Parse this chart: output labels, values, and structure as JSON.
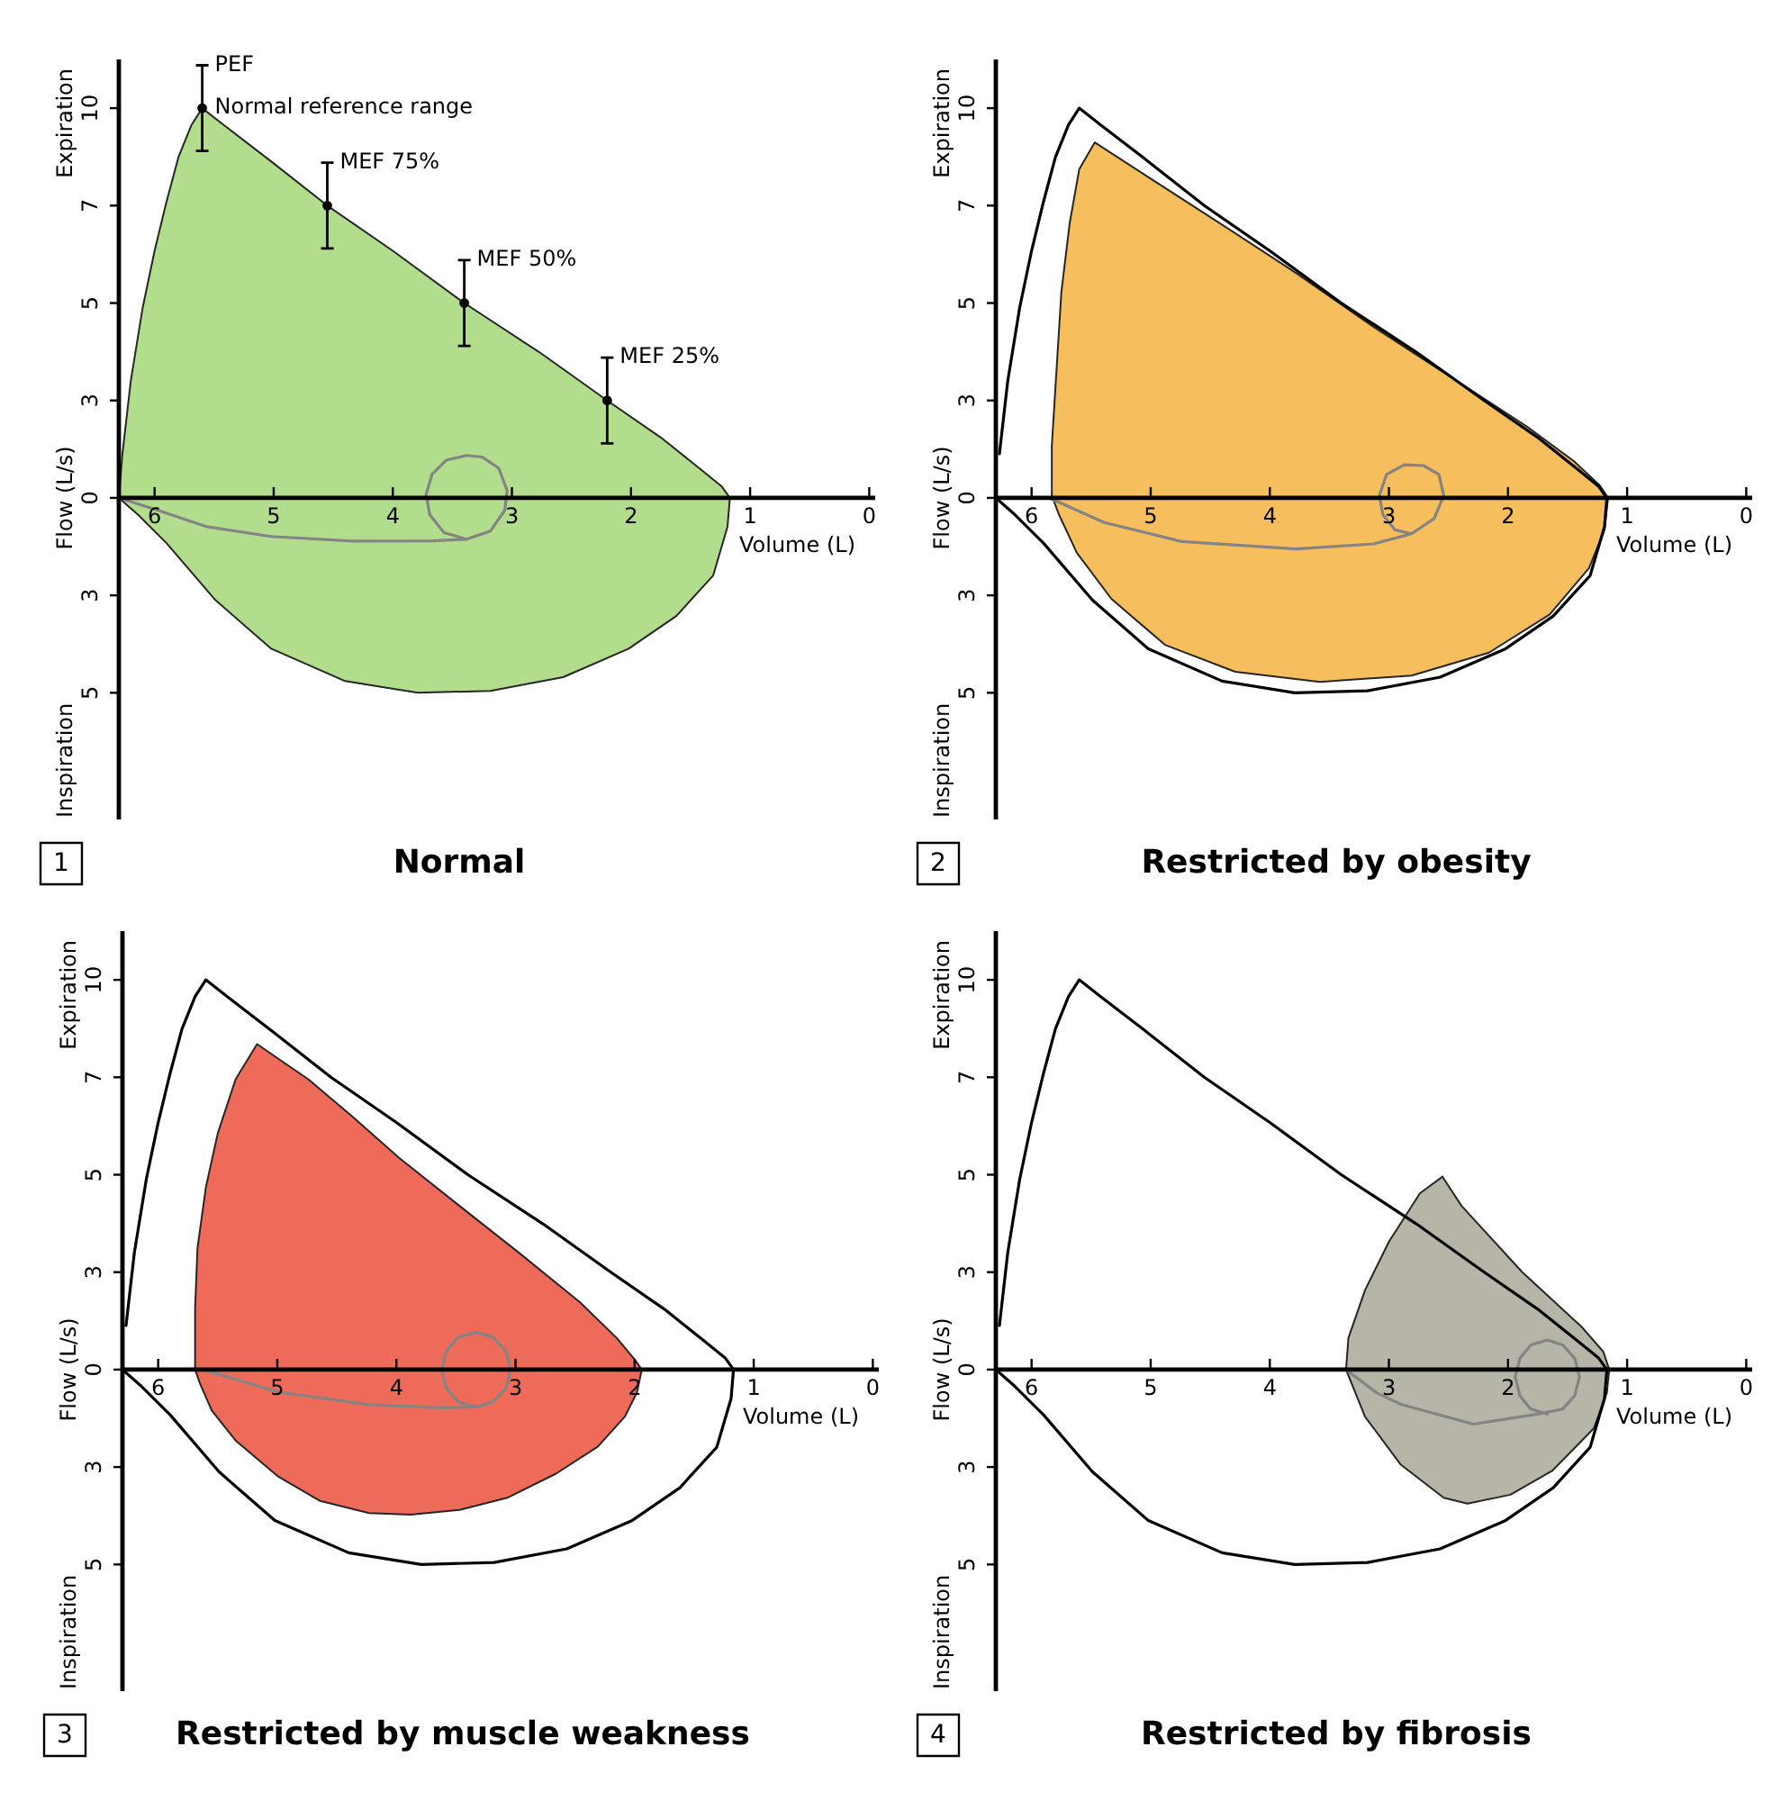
{
  "chart_data": [
    {
      "type": "line",
      "title": "Normal",
      "xlabel": "Volume (L)",
      "ylabel": "Flow (L/s)",
      "annotations": [
        "1",
        "Expiration",
        "Inspiration",
        {
          "text": "PEF",
          "x": 5.6,
          "y": 11.1
        },
        {
          "text": "Normal reference range",
          "x": 5.6,
          "y": 10
        },
        {
          "text": "MEF 75%",
          "x": 4.55,
          "y": 8.6
        },
        {
          "text": "MEF 50%",
          "x": 3.4,
          "y": 6.1
        },
        {
          "text": "MEF 25%",
          "x": 2.2,
          "y": 3.6
        }
      ],
      "xlim": [
        6.3,
        -0.05
      ],
      "xticks": [
        6,
        5,
        4,
        3,
        2,
        1,
        0
      ],
      "ylim": [
        -8.25,
        11.25
      ],
      "yticks": [
        {
          "value": -5,
          "label": "5"
        },
        {
          "value": -2.5,
          "label": "3"
        },
        0,
        {
          "value": 2.5,
          "label": "3"
        },
        5,
        {
          "value": 7.5,
          "label": "7"
        },
        10
      ],
      "marker": "none",
      "series": [
        {
          "type": "area",
          "color": "#b1dd8c",
          "x": [
            6.3,
            6.27,
            6.2,
            6.1,
            6.0,
            5.9,
            5.8,
            5.69,
            5.6,
            5.42,
            5.02,
            4.55,
            4.0,
            3.4,
            2.77,
            2.2,
            1.75,
            1.41,
            1.24,
            1.17,
            1.19,
            1.31,
            1.62,
            2.02,
            2.57,
            3.18,
            3.79,
            4.4,
            5.02,
            5.49,
            5.9,
            6.14,
            6.3
          ],
          "values": [
            0,
            1.13,
            3.0,
            4.88,
            6.34,
            7.6,
            8.74,
            9.57,
            10,
            9.57,
            8.63,
            7.5,
            6.34,
            5.0,
            3.74,
            2.5,
            1.55,
            0.72,
            0.3,
            0,
            -0.74,
            -1.99,
            -3.03,
            -3.87,
            -4.6,
            -4.95,
            -5.0,
            -4.7,
            -3.87,
            -2.62,
            -1.16,
            -0.43,
            0
          ]
        },
        {
          "type": "line",
          "color": "#848484",
          "x": [
            6.3,
            5.97,
            5.56,
            5.02,
            4.34,
            3.66,
            3.38,
            3.18,
            3.06,
            3.04,
            3.11,
            3.25,
            3.38,
            3.55,
            3.67,
            3.72,
            3.69,
            3.57,
            3.38
          ],
          "values": [
            0,
            -0.32,
            -0.74,
            -0.99,
            -1.11,
            -1.1,
            -1.06,
            -0.85,
            -0.32,
            0.19,
            0.76,
            1.05,
            1.09,
            0.97,
            0.61,
            0.09,
            -0.43,
            -0.89,
            -1.06
          ]
        },
        {
          "type": "scatter",
          "color": "#000000",
          "marker": "circle",
          "x": [
            5.6,
            4.55,
            3.4,
            2.2
          ],
          "values": [
            10,
            7.5,
            5,
            2.5
          ],
          "errors": [
            1.1,
            1.1,
            1.1,
            1.1
          ]
        }
      ]
    },
    {
      "type": "line",
      "title": "Restricted by obesity",
      "xlabel": "Volume (L)",
      "ylabel": "Flow (L/s)",
      "annotations": [
        "2",
        "Expiration",
        "Inspiration"
      ],
      "xlim": [
        6.3,
        -0.05
      ],
      "xticks": [
        6,
        5,
        4,
        3,
        2,
        1,
        0
      ],
      "ylim": [
        -8.25,
        11.25
      ],
      "yticks": [
        {
          "value": -5,
          "label": "5"
        },
        {
          "value": -2.5,
          "label": "3"
        },
        0,
        {
          "value": 2.5,
          "label": "3"
        },
        5,
        {
          "value": 7.5,
          "label": "7"
        },
        10
      ],
      "marker": "none",
      "series": [
        {
          "type": "area",
          "color": "#f6be5d",
          "x": [
            5.83,
            5.83,
            5.79,
            5.75,
            5.68,
            5.6,
            5.47,
            5.07,
            4.42,
            3.78,
            3.13,
            2.49,
            1.84,
            1.45,
            1.23,
            1.16,
            1.19,
            1.32,
            1.65,
            2.16,
            2.81,
            3.58,
            4.29,
            4.88,
            5.33,
            5.62,
            5.77,
            5.83
          ],
          "values": [
            0.06,
            1.34,
            3.31,
            5.28,
            7.05,
            8.43,
            9.12,
            8.33,
            7.05,
            5.77,
            4.39,
            3.12,
            1.83,
            0.95,
            0.32,
            0,
            -0.82,
            -1.8,
            -2.99,
            -3.97,
            -4.56,
            -4.72,
            -4.46,
            -3.77,
            -2.59,
            -1.41,
            -0.43,
            0.06
          ]
        },
        {
          "type": "line",
          "color": "#000000",
          "x": [
            6.27,
            6.2,
            6.1,
            6.0,
            5.9,
            5.8,
            5.69,
            5.6,
            5.42,
            5.02,
            4.55,
            4.0,
            3.4,
            2.77,
            2.2,
            1.75,
            1.41,
            1.24,
            1.17,
            1.19,
            1.31,
            1.62,
            2.02,
            2.57,
            3.18,
            3.79,
            4.4,
            5.02,
            5.49,
            5.9,
            6.14,
            6.3
          ],
          "values": [
            1.13,
            3.0,
            4.88,
            6.34,
            7.6,
            8.74,
            9.57,
            10,
            9.57,
            8.63,
            7.5,
            6.34,
            5.0,
            3.74,
            2.5,
            1.55,
            0.72,
            0.3,
            0,
            -0.74,
            -1.99,
            -3.03,
            -3.87,
            -4.6,
            -4.95,
            -5.0,
            -4.7,
            -3.87,
            -2.62,
            -1.16,
            -0.43,
            0
          ]
        },
        {
          "type": "line",
          "color": "#848484",
          "x": [
            5.85,
            5.39,
            4.74,
            3.78,
            3.13,
            2.81,
            2.62,
            2.54,
            2.58,
            2.71,
            2.87,
            3.02,
            3.08,
            3.05,
            2.95,
            2.81
          ],
          "values": [
            0,
            -0.63,
            -1.12,
            -1.31,
            -1.18,
            -0.92,
            -0.53,
            0.06,
            0.6,
            0.83,
            0.85,
            0.6,
            0.06,
            -0.43,
            -0.82,
            -0.92
          ]
        }
      ]
    },
    {
      "type": "line",
      "title": "Restricted by muscle weakness",
      "xlabel": "Volume (L)",
      "ylabel": "Flow (L/s)",
      "annotations": [
        "3",
        "Expiration",
        "Inspiration"
      ],
      "xlim": [
        6.3,
        -0.05
      ],
      "xticks": [
        6,
        5,
        4,
        3,
        2,
        1,
        0
      ],
      "ylim": [
        -8.25,
        11.25
      ],
      "yticks": [
        {
          "value": -5,
          "label": "5"
        },
        {
          "value": -2.5,
          "label": "3"
        },
        0,
        {
          "value": 2.5,
          "label": "3"
        },
        5,
        {
          "value": 7.5,
          "label": "7"
        },
        10
      ],
      "marker": "none",
      "series": [
        {
          "type": "area",
          "color": "#ee6a59",
          "x": [
            5.69,
            5.69,
            5.67,
            5.6,
            5.5,
            5.35,
            5.17,
            4.74,
            4.38,
            3.98,
            3.47,
            2.96,
            2.46,
            2.15,
            2.0,
            1.94,
            1.98,
            2.08,
            2.31,
            2.66,
            3.07,
            3.47,
            3.88,
            4.23,
            4.64,
            4.99,
            5.35,
            5.55,
            5.65,
            5.69
          ],
          "values": [
            0,
            1.58,
            3.12,
            4.67,
            6.06,
            7.45,
            8.35,
            7.45,
            6.52,
            5.44,
            4.2,
            2.97,
            1.73,
            0.81,
            0.26,
            0,
            -0.58,
            -1.2,
            -1.98,
            -2.67,
            -3.29,
            -3.6,
            -3.72,
            -3.68,
            -3.37,
            -2.75,
            -1.82,
            -1.05,
            -0.35,
            0
          ]
        },
        {
          "type": "line",
          "color": "#000000",
          "x": [
            6.27,
            6.2,
            6.1,
            6.0,
            5.9,
            5.8,
            5.69,
            5.6,
            5.42,
            5.02,
            4.55,
            4.0,
            3.4,
            2.77,
            2.2,
            1.75,
            1.41,
            1.24,
            1.17,
            1.19,
            1.31,
            1.62,
            2.02,
            2.57,
            3.18,
            3.79,
            4.4,
            5.02,
            5.49,
            5.9,
            6.14,
            6.3
          ],
          "values": [
            1.13,
            3.0,
            4.88,
            6.34,
            7.6,
            8.74,
            9.57,
            10,
            9.57,
            8.63,
            7.5,
            6.34,
            5.0,
            3.74,
            2.5,
            1.55,
            0.72,
            0.3,
            0,
            -0.74,
            -1.99,
            -3.03,
            -3.87,
            -4.6,
            -4.95,
            -5.0,
            -4.7,
            -3.87,
            -2.62,
            -1.16,
            -0.43,
            0
          ]
        },
        {
          "type": "line",
          "color": "#848484",
          "x": [
            5.62,
            4.99,
            4.23,
            3.6,
            3.33,
            3.19,
            3.08,
            3.04,
            3.08,
            3.19,
            3.33,
            3.48,
            3.58,
            3.62,
            3.58,
            3.48,
            3.33
          ],
          "values": [
            0,
            -0.58,
            -0.9,
            -0.98,
            -0.96,
            -0.83,
            -0.48,
            0,
            0.48,
            0.83,
            0.96,
            0.83,
            0.48,
            0,
            -0.48,
            -0.83,
            -0.96
          ]
        }
      ]
    },
    {
      "type": "line",
      "title": "Restricted by fibrosis",
      "xlabel": "Volume (L)",
      "ylabel": "Flow (L/s)",
      "annotations": [
        "4",
        "Expiration",
        "Inspiration"
      ],
      "xlim": [
        6.3,
        -0.05
      ],
      "xticks": [
        6,
        5,
        4,
        3,
        2,
        1,
        0
      ],
      "ylim": [
        -8.25,
        11.25
      ],
      "yticks": [
        {
          "value": -5,
          "label": "5"
        },
        {
          "value": -2.5,
          "label": "3"
        },
        0,
        {
          "value": 2.5,
          "label": "3"
        },
        5,
        {
          "value": 7.5,
          "label": "7"
        },
        10
      ],
      "marker": "none",
      "series": [
        {
          "type": "area",
          "color": "#b6b5a8",
          "x": [
            3.36,
            3.34,
            3.2,
            3.0,
            2.74,
            2.55,
            2.39,
            1.88,
            1.38,
            1.2,
            1.15,
            1.17,
            1.28,
            1.63,
            1.98,
            2.34,
            2.54,
            2.9,
            3.2,
            3.36
          ],
          "values": [
            0,
            0.81,
            2.04,
            3.28,
            4.52,
            4.95,
            4.2,
            2.5,
            1.09,
            0.46,
            0,
            -0.6,
            -1.51,
            -2.6,
            -3.21,
            -3.44,
            -3.29,
            -2.44,
            -1.21,
            0
          ]
        },
        {
          "type": "line",
          "color": "#000000",
          "x": [
            6.27,
            6.2,
            6.1,
            6.0,
            5.9,
            5.8,
            5.69,
            5.6,
            5.42,
            5.02,
            4.55,
            4.0,
            3.4,
            2.77,
            2.2,
            1.75,
            1.41,
            1.24,
            1.17,
            1.19,
            1.31,
            1.62,
            2.02,
            2.57,
            3.18,
            3.79,
            4.4,
            5.02,
            5.49,
            5.9,
            6.14,
            6.3
          ],
          "values": [
            1.13,
            3.0,
            4.88,
            6.34,
            7.6,
            8.74,
            9.57,
            10,
            9.57,
            8.63,
            7.5,
            6.34,
            5.0,
            3.74,
            2.5,
            1.55,
            0.72,
            0.3,
            0,
            -0.74,
            -1.99,
            -3.03,
            -3.87,
            -4.6,
            -4.95,
            -5.0,
            -4.7,
            -3.87,
            -2.62,
            -1.16,
            -0.43,
            0
          ]
        },
        {
          "type": "line",
          "color": "#848484",
          "x": [
            3.36,
            3.1,
            2.9,
            2.29,
            1.73,
            1.54,
            1.44,
            1.4,
            1.44,
            1.54,
            1.67,
            1.81,
            1.9,
            1.94,
            1.9,
            1.81,
            1.67
          ],
          "values": [
            0,
            -0.6,
            -0.89,
            -1.4,
            -1.13,
            -1.01,
            -0.67,
            -0.19,
            0.29,
            0.63,
            0.76,
            0.63,
            0.29,
            -0.19,
            -0.67,
            -1.01,
            -1.14
          ]
        }
      ]
    }
  ]
}
